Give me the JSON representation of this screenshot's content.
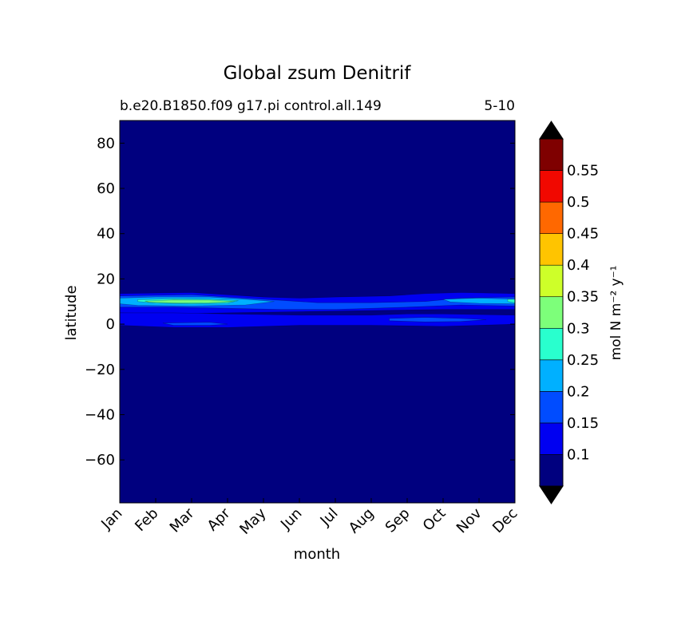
{
  "chart_data": {
    "type": "heatmap",
    "title": "Global zsum Denitrif",
    "subtitle_left": "b.e20.B1850.f09 g17.pi control.all.149",
    "subtitle_right": "5-10",
    "xlabel": "month",
    "ylabel": "latitude",
    "x_ticks": [
      "Jan",
      "Feb",
      "Mar",
      "Apr",
      "May",
      "Jun",
      "Jul",
      "Aug",
      "Sep",
      "Oct",
      "Nov",
      "Dec"
    ],
    "y_ticks": [
      -60,
      -40,
      -20,
      0,
      20,
      40,
      60,
      80
    ],
    "xlim": [
      0,
      11
    ],
    "ylim": [
      -79,
      90
    ],
    "colorbar": {
      "label": "mol N m⁻² y⁻¹",
      "levels": [
        0.05,
        0.1,
        0.15,
        0.2,
        0.25,
        0.3,
        0.35,
        0.4,
        0.45,
        0.5,
        0.55,
        0.6
      ],
      "tick_labels": [
        "0.1",
        "0.15",
        "0.2",
        "0.25",
        "0.3",
        "0.35",
        "0.4",
        "0.45",
        "0.5",
        "0.55"
      ],
      "colors": [
        "#00007f",
        "#0000f1",
        "#004cff",
        "#00b0ff",
        "#29ffce",
        "#7dff7a",
        "#ceff29",
        "#ffc400",
        "#ff6800",
        "#f10800",
        "#7f0000"
      ],
      "extend": "both",
      "under_color": "#000000",
      "over_color": "#000000"
    },
    "features": [
      {
        "name": "main-band",
        "peak_lat": 10,
        "peak_month": 2,
        "peak_value": 0.3
      },
      {
        "name": "equatorial-band",
        "peak_lat": 1,
        "peak_value": 0.15
      }
    ]
  }
}
